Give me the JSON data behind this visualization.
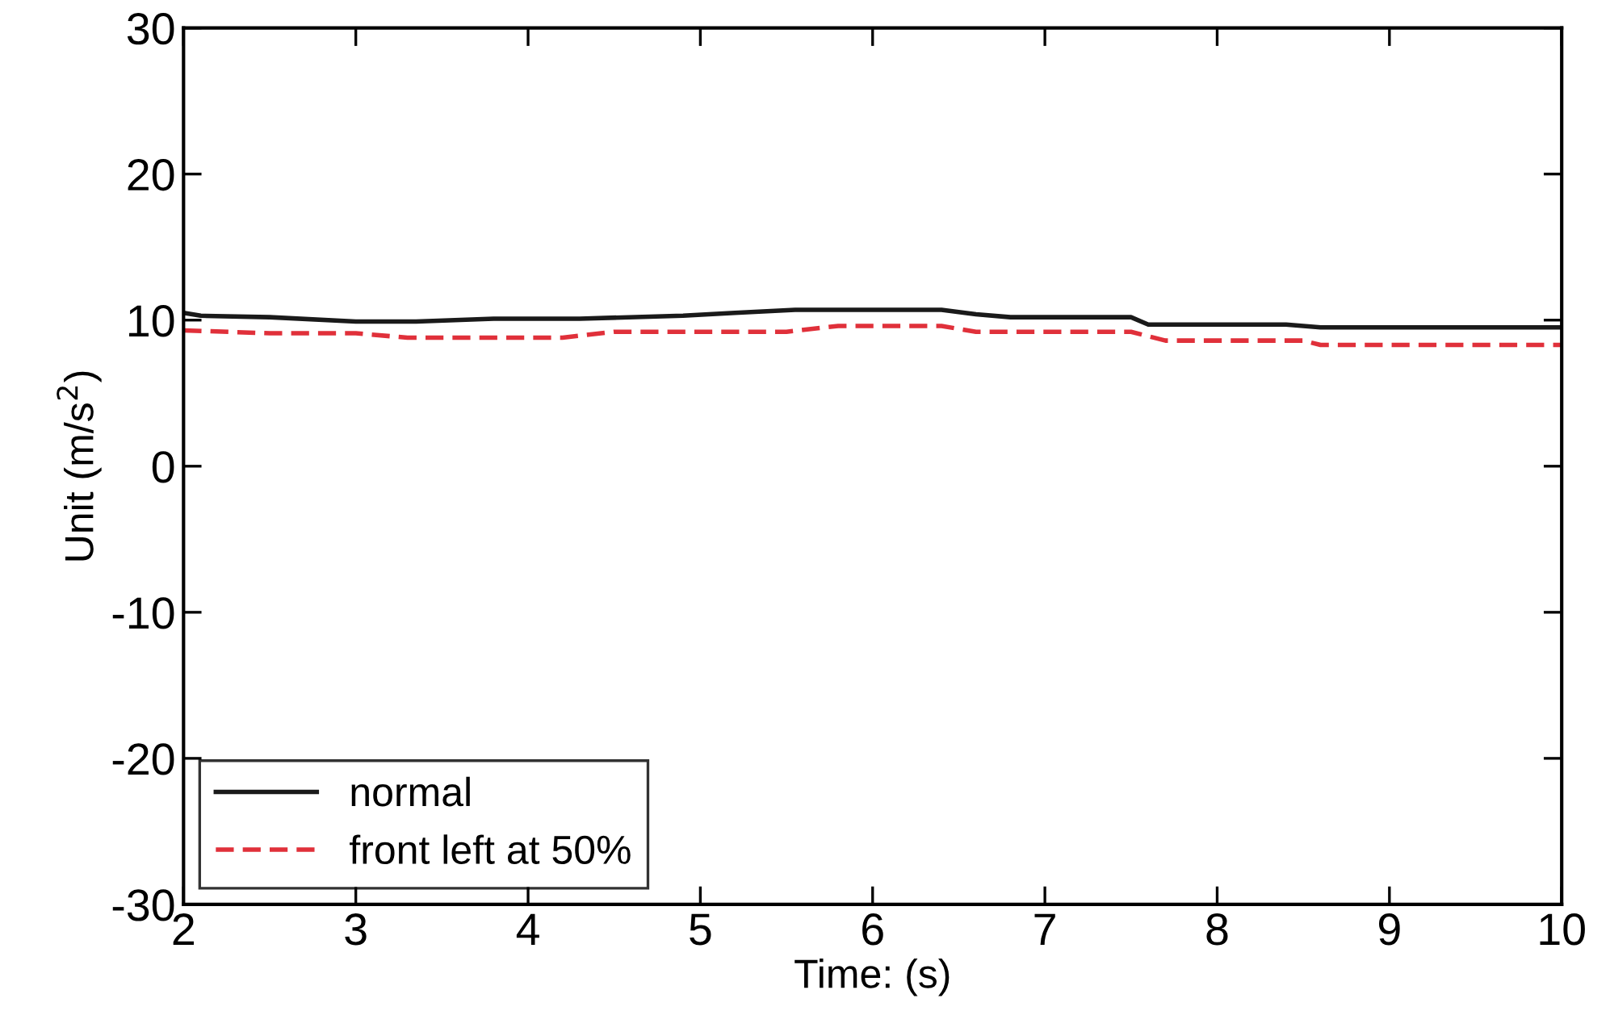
{
  "chart_data": {
    "type": "line",
    "xlabel": "Time: (s)",
    "ylabel": "Unit (m/s$^{2}$)",
    "xlim": [
      2,
      10
    ],
    "ylim": [
      -30,
      30
    ],
    "xticks": [
      2,
      3,
      4,
      5,
      6,
      7,
      8,
      9,
      10
    ],
    "yticks": [
      -30,
      -20,
      -10,
      0,
      10,
      20,
      30
    ],
    "grid": false,
    "legend": "bottom left",
    "series": [
      {
        "name": "normal",
        "color": "#1a1a1a",
        "line_style": "solid",
        "x": [
          2,
          2.1,
          2.5,
          3.0,
          3.35,
          3.8,
          4.3,
          4.9,
          5.2,
          5.55,
          5.9,
          6.4,
          6.6,
          6.8,
          7.5,
          7.6,
          8.4,
          8.6,
          9.5,
          10
        ],
        "values": [
          10.5,
          10.3,
          10.2,
          9.9,
          9.9,
          10.1,
          10.1,
          10.3,
          10.5,
          10.7,
          10.7,
          10.7,
          10.4,
          10.2,
          10.2,
          9.7,
          9.7,
          9.5,
          9.5,
          9.5
        ]
      },
      {
        "name": "front left at 50%",
        "color": "#e0303a",
        "line_style": "dashed",
        "x": [
          2,
          2.5,
          3.0,
          3.3,
          4.2,
          4.5,
          5.0,
          5.5,
          5.8,
          6.4,
          6.6,
          7.5,
          7.7,
          8.5,
          8.6,
          9.5,
          10
        ],
        "values": [
          9.3,
          9.1,
          9.1,
          8.8,
          8.8,
          9.2,
          9.2,
          9.2,
          9.6,
          9.6,
          9.2,
          9.2,
          8.6,
          8.6,
          8.3,
          8.3,
          8.3
        ]
      }
    ]
  }
}
